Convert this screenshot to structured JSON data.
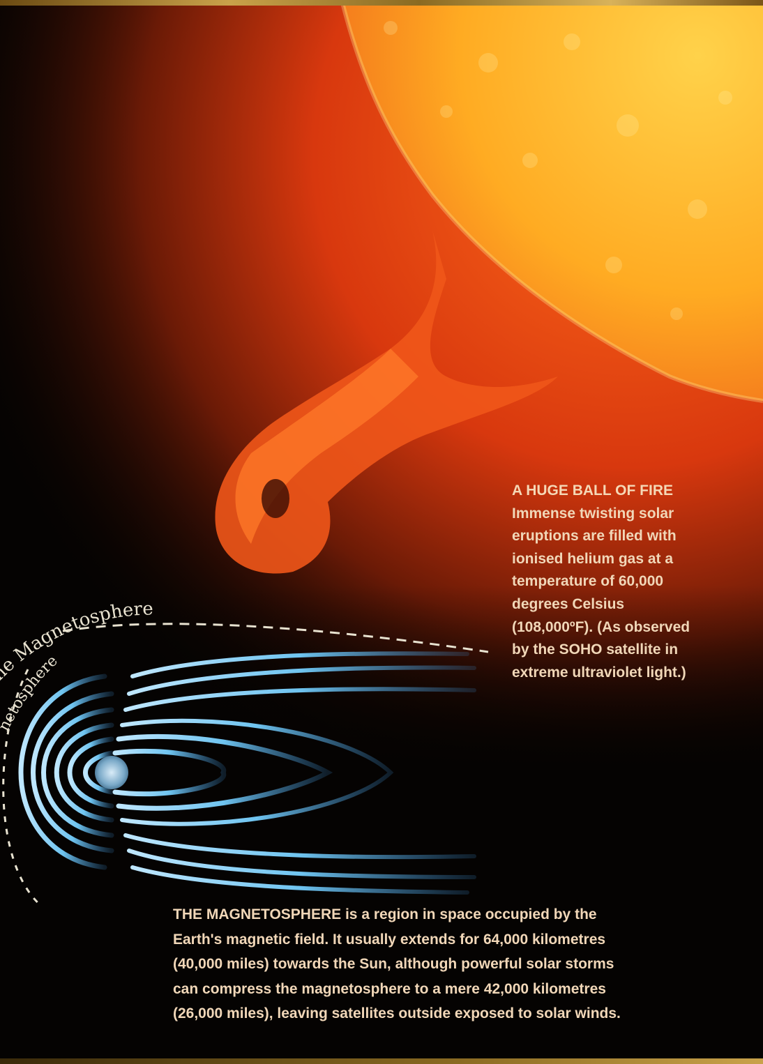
{
  "diagram_labels": {
    "arc_outer": "of the Magnetosphere",
    "arc_inner": "netosphere"
  },
  "caption_fire": {
    "title": "A HUGE BALL OF FIRE",
    "lines": [
      "Immense twisting solar",
      "eruptions are filled with",
      "ionised helium gas at a",
      "temperature of 60,000",
      "degrees Celsius",
      "(108,000ºF). (As observed",
      "by the SOHO satellite in",
      "extreme ultraviolet light.)"
    ]
  },
  "caption_magnetosphere": {
    "lines": [
      "THE MAGNETOSPHERE is a region in space occupied by the",
      "Earth's magnetic field. It usually extends for 64,000 kilometres",
      "(40,000 miles) towards the Sun, although powerful solar storms",
      "can compress the magnetosphere to a mere 42,000 kilometres",
      "(26,000 miles), leaving satellites outside exposed to solar winds."
    ]
  },
  "colors": {
    "sun_core": "#ffb820",
    "sun_edge": "#e8541a",
    "space": "#050302",
    "field_lines": "#6fc4f0",
    "caption_text": "#f1d7b8",
    "label_text": "#e8e2d0"
  }
}
